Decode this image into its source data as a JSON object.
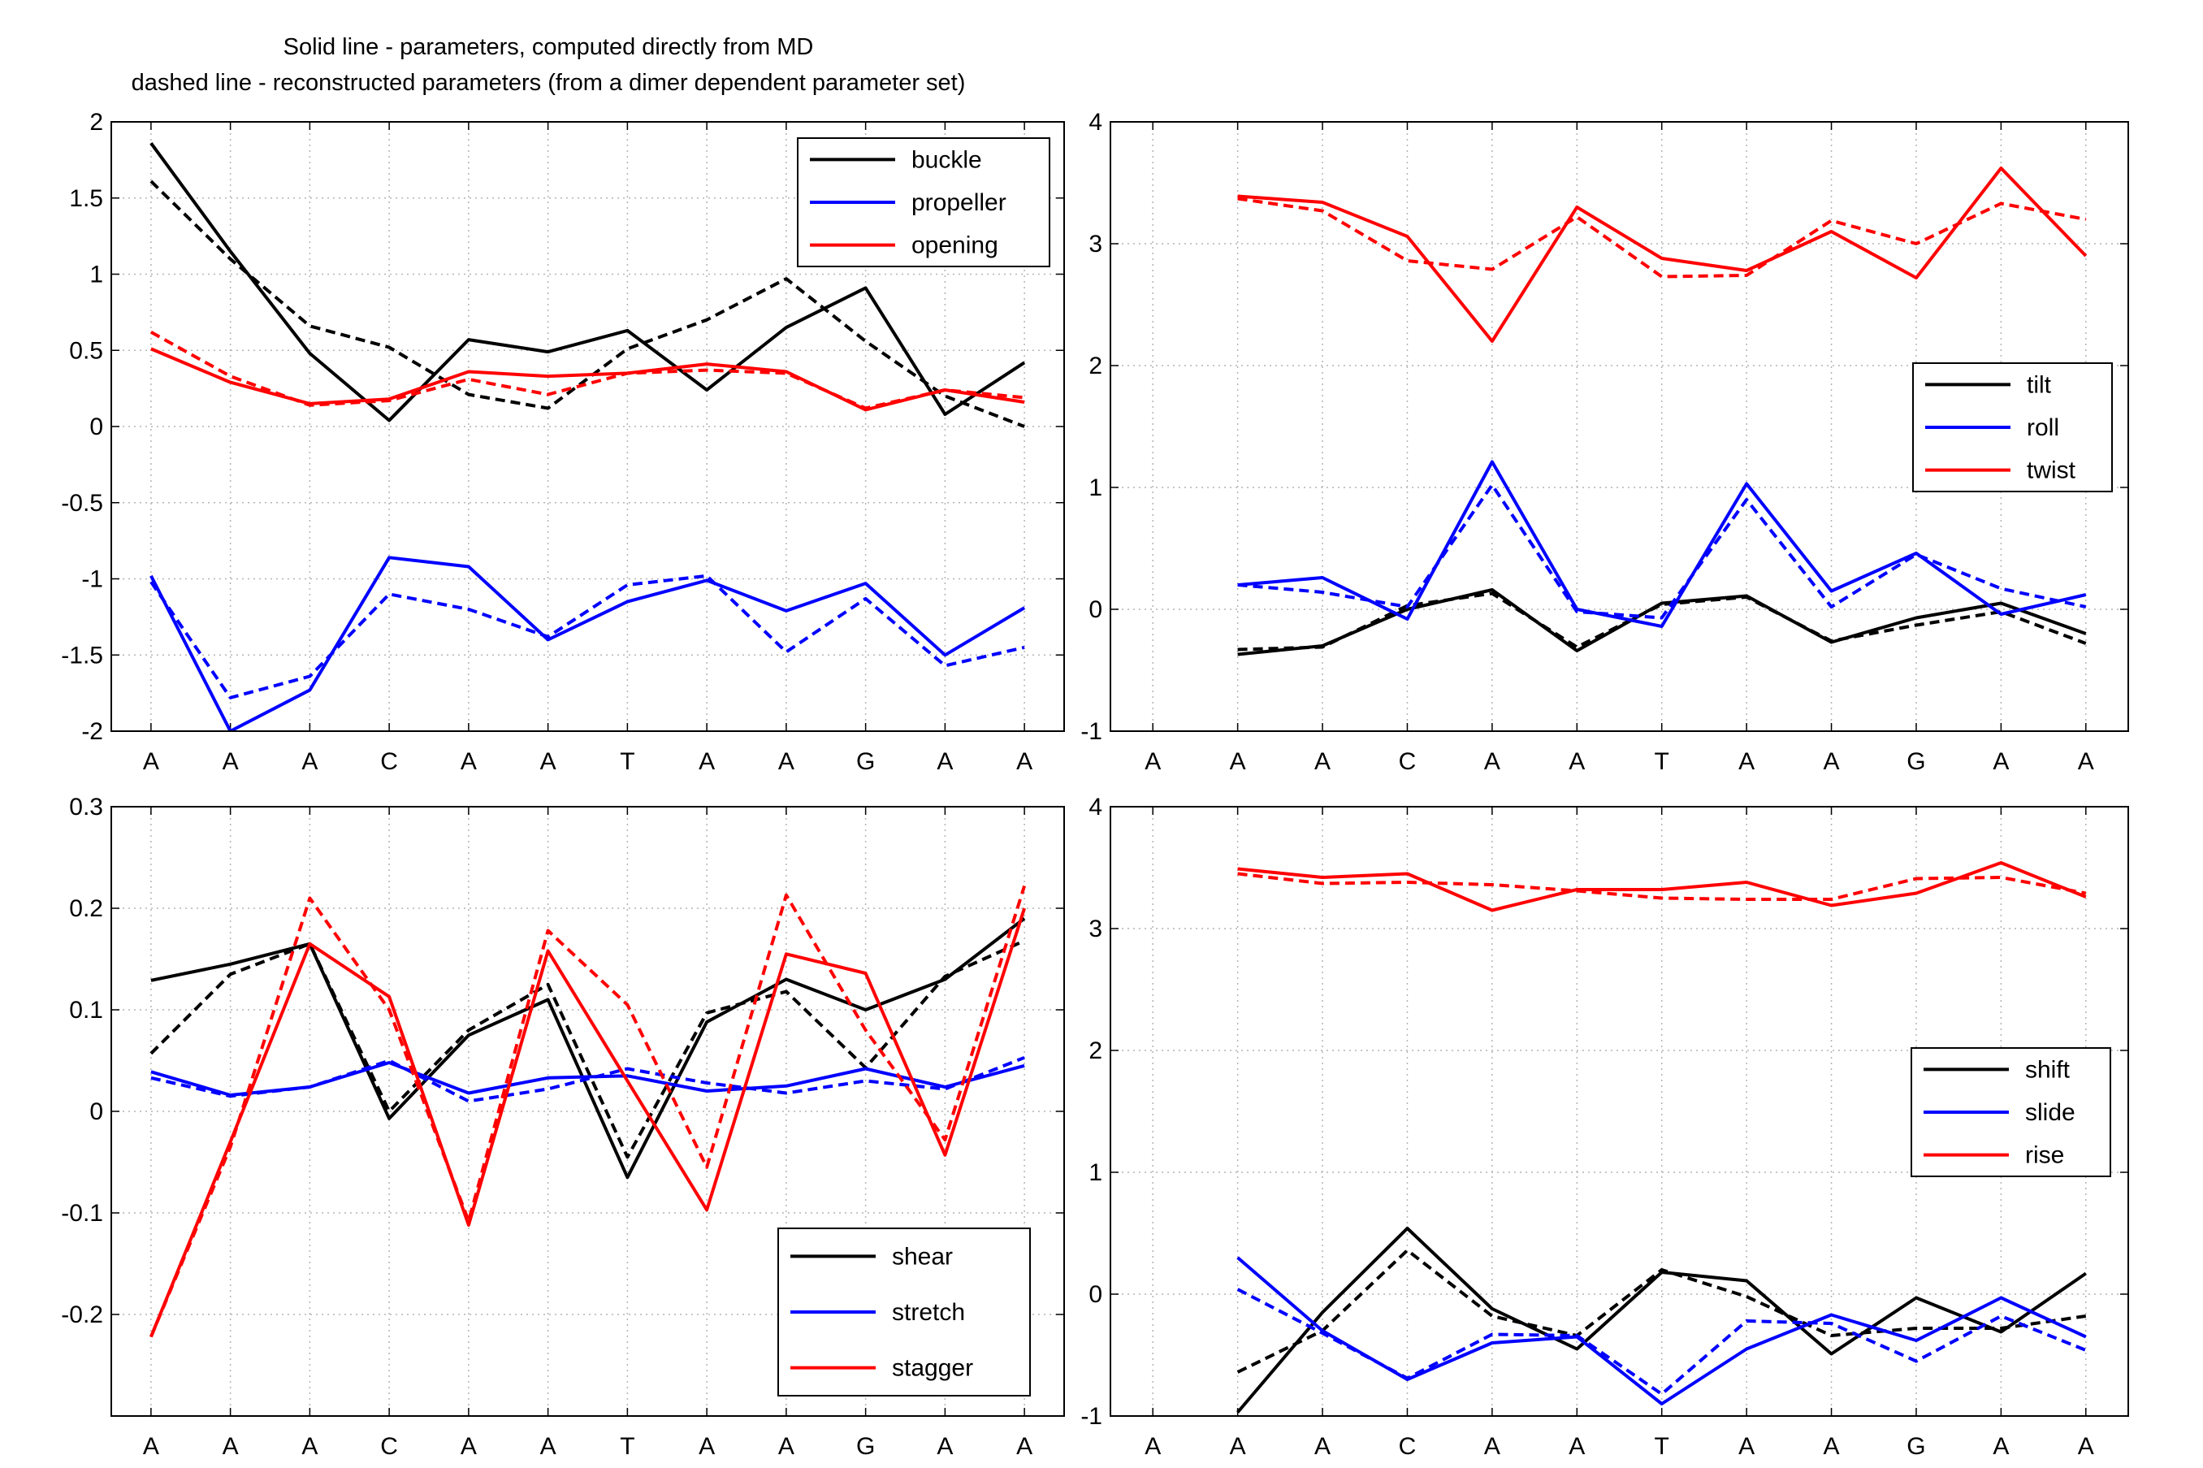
{
  "figure_title": [
    "Solid line - parameters, computed directly from MD",
    "dashed line - reconstructed parameters (from a dimer dependent parameter set)"
  ],
  "line_styles": {
    "solid": "computed directly from MD",
    "dashed": "reconstructed parameters"
  },
  "colors": {
    "black": "#000000",
    "blue": "#0000ff",
    "red": "#ff0000",
    "grid": "#b4b4b4"
  },
  "chart_data": [
    {
      "type": "line",
      "categories": [
        "A",
        "A",
        "A",
        "C",
        "A",
        "A",
        "T",
        "A",
        "A",
        "G",
        "A",
        "A"
      ],
      "ylim": [
        -2,
        2
      ],
      "yticks": [
        -2,
        -1.5,
        -1,
        -0.5,
        0,
        0.5,
        1,
        1.5,
        2
      ],
      "ytick_labels": [
        "-2",
        "-1.5",
        "-1",
        "-0.5",
        "0",
        "0.5",
        "1",
        "1.5",
        "2"
      ],
      "grid": true,
      "legend_placement": "top-right",
      "series": [
        {
          "name": "buckle",
          "color": "#000000",
          "solid": [
            1.86,
            1.15,
            0.48,
            0.04,
            0.57,
            0.49,
            0.63,
            0.24,
            0.65,
            0.91,
            0.08,
            0.42
          ],
          "dashed": [
            1.61,
            1.1,
            0.66,
            0.52,
            0.21,
            0.12,
            0.51,
            0.7,
            0.97,
            0.56,
            0.2,
            0.0
          ]
        },
        {
          "name": "propeller",
          "color": "#0000ff",
          "solid": [
            -0.98,
            -2.0,
            -1.73,
            -0.86,
            -0.92,
            -1.4,
            -1.15,
            -1.01,
            -1.21,
            -1.03,
            -1.5,
            -1.19
          ],
          "dashed": [
            -1.02,
            -1.78,
            -1.64,
            -1.1,
            -1.2,
            -1.38,
            -1.04,
            -0.98,
            -1.48,
            -1.13,
            -1.57,
            -1.45
          ]
        },
        {
          "name": "opening",
          "color": "#ff0000",
          "solid": [
            0.51,
            0.29,
            0.15,
            0.18,
            0.36,
            0.33,
            0.35,
            0.41,
            0.36,
            0.11,
            0.24,
            0.16
          ],
          "dashed": [
            0.62,
            0.33,
            0.14,
            0.17,
            0.31,
            0.21,
            0.35,
            0.37,
            0.35,
            0.12,
            0.24,
            0.19
          ]
        }
      ]
    },
    {
      "type": "line",
      "categories": [
        "A",
        "A",
        "A",
        "C",
        "A",
        "A",
        "T",
        "A",
        "A",
        "G",
        "A",
        "A"
      ],
      "ylim": [
        -1,
        4
      ],
      "yticks": [
        -1,
        0,
        1,
        2,
        3,
        4
      ],
      "ytick_labels": [
        "-1",
        "0",
        "1",
        "2",
        "3",
        "4"
      ],
      "grid": true,
      "legend_placement": "right",
      "series": [
        {
          "name": "tilt",
          "color": "#000000",
          "solid": [
            -0.37,
            -0.3,
            0.0,
            0.16,
            -0.34,
            0.05,
            0.11,
            -0.27,
            -0.07,
            0.05,
            -0.2
          ],
          "dashed": [
            -0.33,
            -0.31,
            0.03,
            0.13,
            -0.31,
            0.04,
            0.1,
            -0.26,
            -0.13,
            -0.02,
            -0.28
          ]
        },
        {
          "name": "roll",
          "color": "#0000ff",
          "solid": [
            0.2,
            0.26,
            -0.08,
            1.21,
            0.0,
            -0.14,
            1.03,
            0.15,
            0.46,
            -0.04,
            0.12
          ],
          "dashed": [
            0.2,
            0.14,
            0.02,
            1.02,
            -0.02,
            -0.07,
            0.9,
            0.02,
            0.45,
            0.17,
            0.02
          ]
        },
        {
          "name": "twist",
          "color": "#ff0000",
          "solid": [
            3.39,
            3.34,
            3.06,
            2.2,
            3.3,
            2.88,
            2.78,
            3.1,
            2.72,
            3.62,
            2.9
          ],
          "dashed": [
            3.37,
            3.27,
            2.86,
            2.79,
            3.22,
            2.73,
            2.74,
            3.19,
            3.0,
            3.33,
            3.2
          ]
        }
      ]
    },
    {
      "type": "line",
      "categories": [
        "A",
        "A",
        "A",
        "C",
        "A",
        "A",
        "T",
        "A",
        "A",
        "G",
        "A",
        "A"
      ],
      "ylim": [
        -0.3,
        0.3
      ],
      "yticks": [
        -0.2,
        -0.1,
        0,
        0.1,
        0.2,
        0.3
      ],
      "ytick_labels": [
        "-0.2",
        "-0.1",
        "0",
        "0.1",
        "0.2",
        "0.3"
      ],
      "grid": true,
      "legend_placement": "bottom-right",
      "series": [
        {
          "name": "shear",
          "color": "#000000",
          "solid": [
            0.129,
            0.145,
            0.165,
            -0.007,
            0.075,
            0.11,
            -0.065,
            0.088,
            0.13,
            0.1,
            0.13,
            0.19
          ],
          "dashed": [
            0.057,
            0.135,
            0.165,
            0.0,
            0.08,
            0.125,
            -0.045,
            0.097,
            0.118,
            0.043,
            0.133,
            0.168
          ]
        },
        {
          "name": "stretch",
          "color": "#0000ff",
          "solid": [
            0.039,
            0.016,
            0.024,
            0.048,
            0.018,
            0.033,
            0.035,
            0.02,
            0.025,
            0.042,
            0.024,
            0.045
          ],
          "dashed": [
            0.033,
            0.015,
            0.024,
            0.05,
            0.01,
            0.022,
            0.042,
            0.028,
            0.018,
            0.03,
            0.022,
            0.053
          ]
        },
        {
          "name": "stagger",
          "color": "#ff0000",
          "solid": [
            -0.222,
            -0.03,
            0.165,
            0.113,
            -0.112,
            0.158,
            0.03,
            -0.097,
            0.155,
            0.136,
            -0.043,
            0.2
          ],
          "dashed": [
            -0.222,
            -0.035,
            0.21,
            0.1,
            -0.108,
            0.178,
            0.105,
            -0.055,
            0.213,
            0.08,
            -0.028,
            0.222
          ]
        }
      ]
    },
    {
      "type": "line",
      "categories": [
        "A",
        "A",
        "A",
        "C",
        "A",
        "A",
        "T",
        "A",
        "A",
        "G",
        "A",
        "A"
      ],
      "ylim": [
        -1,
        4
      ],
      "yticks": [
        -1,
        0,
        1,
        2,
        3,
        4
      ],
      "ytick_labels": [
        "-1",
        "0",
        "1",
        "2",
        "3",
        "4"
      ],
      "grid": true,
      "legend_placement": "right",
      "series": [
        {
          "name": "shift",
          "color": "#000000",
          "solid": [
            -0.97,
            -0.15,
            0.54,
            -0.12,
            -0.45,
            0.18,
            0.11,
            -0.49,
            -0.03,
            -0.31,
            0.17
          ],
          "dashed": [
            -0.64,
            -0.3,
            0.36,
            -0.18,
            -0.34,
            0.2,
            -0.02,
            -0.34,
            -0.28,
            -0.28,
            -0.18
          ]
        },
        {
          "name": "slide",
          "color": "#0000ff",
          "solid": [
            0.3,
            -0.3,
            -0.7,
            -0.4,
            -0.35,
            -0.9,
            -0.45,
            -0.17,
            -0.38,
            -0.03,
            -0.35
          ],
          "dashed": [
            0.04,
            -0.32,
            -0.69,
            -0.33,
            -0.34,
            -0.82,
            -0.22,
            -0.24,
            -0.55,
            -0.18,
            -0.46
          ]
        },
        {
          "name": "rise",
          "color": "#ff0000",
          "solid": [
            3.49,
            3.42,
            3.45,
            3.15,
            3.32,
            3.32,
            3.38,
            3.19,
            3.29,
            3.54,
            3.26
          ],
          "dashed": [
            3.45,
            3.37,
            3.38,
            3.36,
            3.31,
            3.25,
            3.24,
            3.24,
            3.41,
            3.42,
            3.29
          ]
        }
      ]
    }
  ]
}
